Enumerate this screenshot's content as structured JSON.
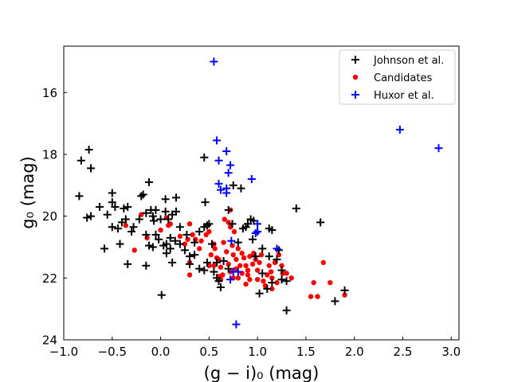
{
  "chart_data": {
    "type": "scatter",
    "xlabel": "(g − i)₀ (mag)",
    "ylabel": "g₀ (mag)",
    "xlim": [
      -1.0,
      3.08
    ],
    "ylim": [
      24.0,
      14.5
    ],
    "y_inverted": true,
    "grid": false,
    "x_ticks": [
      -1.0,
      -0.5,
      0.0,
      0.5,
      1.0,
      1.5,
      2.0,
      2.5,
      3.0
    ],
    "x_tick_labels": [
      "−1.0",
      "−0.5",
      "0.0",
      "0.5",
      "1.0",
      "1.5",
      "2.0",
      "2.5",
      "3.0"
    ],
    "y_ticks": [
      16,
      18,
      20,
      22,
      24
    ],
    "y_tick_labels": [
      "16",
      "18",
      "20",
      "22",
      "24"
    ],
    "legend_position": "top-right",
    "series": [
      {
        "name": "Johnson et al.",
        "marker": "plus",
        "color": "#000000",
        "points": [
          [
            -0.74,
            17.85
          ],
          [
            -0.72,
            18.45
          ],
          [
            -0.82,
            18.2
          ],
          [
            -0.84,
            19.35
          ],
          [
            -0.76,
            20.05
          ],
          [
            -0.72,
            20.0
          ],
          [
            -0.63,
            19.7
          ],
          [
            -0.55,
            19.95
          ],
          [
            -0.5,
            19.25
          ],
          [
            -0.5,
            19.55
          ],
          [
            -0.47,
            19.7
          ],
          [
            -0.5,
            20.35
          ],
          [
            -0.44,
            20.4
          ],
          [
            -0.4,
            20.2
          ],
          [
            -0.38,
            19.75
          ],
          [
            -0.34,
            19.7
          ],
          [
            -0.36,
            20.1
          ],
          [
            -0.3,
            20.5
          ],
          [
            -0.28,
            20.35
          ],
          [
            -0.2,
            19.35
          ],
          [
            -0.18,
            19.3
          ],
          [
            -0.15,
            19.9
          ],
          [
            -0.22,
            20.1
          ],
          [
            -0.12,
            18.9
          ],
          [
            -0.1,
            19.8
          ],
          [
            -0.05,
            19.8
          ],
          [
            -0.08,
            20.0
          ],
          [
            -0.07,
            20.15
          ],
          [
            0.0,
            20.1
          ],
          [
            0.05,
            19.45
          ],
          [
            0.05,
            19.85
          ],
          [
            0.08,
            20.1
          ],
          [
            0.12,
            19.95
          ],
          [
            0.16,
            19.4
          ],
          [
            0.16,
            19.85
          ],
          [
            0.2,
            20.35
          ],
          [
            -0.15,
            20.6
          ],
          [
            -0.05,
            20.6
          ],
          [
            -0.02,
            20.75
          ],
          [
            0.03,
            20.95
          ],
          [
            0.06,
            20.9
          ],
          [
            0.1,
            20.7
          ],
          [
            0.1,
            21.05
          ],
          [
            0.15,
            20.8
          ],
          [
            0.2,
            20.9
          ],
          [
            0.25,
            21.1
          ],
          [
            0.27,
            20.6
          ],
          [
            0.3,
            21.3
          ],
          [
            0.3,
            21.55
          ],
          [
            -0.42,
            20.9
          ],
          [
            -0.58,
            21.05
          ],
          [
            -0.12,
            20.95
          ],
          [
            -0.08,
            21.0
          ],
          [
            0.06,
            21.2
          ],
          [
            0.12,
            21.5
          ],
          [
            -0.34,
            21.55
          ],
          [
            -0.15,
            21.6
          ],
          [
            0.4,
            20.5
          ],
          [
            0.45,
            20.35
          ],
          [
            0.35,
            20.85
          ],
          [
            0.35,
            21.25
          ],
          [
            0.48,
            20.3
          ],
          [
            0.5,
            20.25
          ],
          [
            0.46,
            19.55
          ],
          [
            0.45,
            18.1
          ],
          [
            0.48,
            21.5
          ],
          [
            0.4,
            21.7
          ],
          [
            0.45,
            21.75
          ],
          [
            0.53,
            20.9
          ],
          [
            0.58,
            21.5
          ],
          [
            0.55,
            21.8
          ],
          [
            0.58,
            22.0
          ],
          [
            0.6,
            22.1
          ],
          [
            0.65,
            21.45
          ],
          [
            0.7,
            21.7
          ],
          [
            0.62,
            22.3
          ],
          [
            0.7,
            19.8
          ],
          [
            0.75,
            19.0
          ],
          [
            0.83,
            19.1
          ],
          [
            0.74,
            20.25
          ],
          [
            0.8,
            20.85
          ],
          [
            0.85,
            20.4
          ],
          [
            0.88,
            20.35
          ],
          [
            0.9,
            20.25
          ],
          [
            0.93,
            20.1
          ],
          [
            0.96,
            20.15
          ],
          [
            0.95,
            20.75
          ],
          [
            1.0,
            20.5
          ],
          [
            0.98,
            21.3
          ],
          [
            1.05,
            21.05
          ],
          [
            1.12,
            20.4
          ],
          [
            1.15,
            20.45
          ],
          [
            1.12,
            21.3
          ],
          [
            1.05,
            21.85
          ],
          [
            1.02,
            22.5
          ],
          [
            1.1,
            22.35
          ],
          [
            1.15,
            22.15
          ],
          [
            1.2,
            21.4
          ],
          [
            1.22,
            21.1
          ],
          [
            1.25,
            21.75
          ],
          [
            1.25,
            22.05
          ],
          [
            1.3,
            22.1
          ],
          [
            1.4,
            19.75
          ],
          [
            1.65,
            20.2
          ],
          [
            1.3,
            23.05
          ],
          [
            1.8,
            22.75
          ],
          [
            1.9,
            22.4
          ],
          [
            0.01,
            22.55
          ]
        ]
      },
      {
        "name": "Candidates",
        "marker": "circle",
        "color": "#ff0000",
        "points": [
          [
            -0.36,
            20.3
          ],
          [
            -0.27,
            21.1
          ],
          [
            -0.2,
            19.95
          ],
          [
            -0.14,
            20.7
          ],
          [
            0.0,
            20.45
          ],
          [
            0.06,
            20.05
          ],
          [
            0.08,
            20.3
          ],
          [
            0.1,
            20.25
          ],
          [
            0.2,
            20.65
          ],
          [
            0.25,
            20.9
          ],
          [
            0.28,
            20.75
          ],
          [
            0.3,
            20.25
          ],
          [
            0.33,
            20.6
          ],
          [
            0.36,
            20.75
          ],
          [
            0.3,
            21.5
          ],
          [
            0.3,
            21.9
          ],
          [
            0.4,
            21.05
          ],
          [
            0.42,
            20.8
          ],
          [
            0.47,
            20.6
          ],
          [
            0.5,
            20.5
          ],
          [
            0.52,
            21.25
          ],
          [
            0.55,
            20.9
          ],
          [
            0.56,
            21.05
          ],
          [
            0.58,
            21.35
          ],
          [
            0.55,
            21.6
          ],
          [
            0.6,
            21.4
          ],
          [
            0.62,
            21.65
          ],
          [
            0.64,
            21.9
          ],
          [
            0.6,
            21.95
          ],
          [
            0.62,
            22.05
          ],
          [
            0.66,
            20.1
          ],
          [
            0.7,
            20.2
          ],
          [
            0.72,
            19.8
          ],
          [
            0.72,
            20.35
          ],
          [
            0.74,
            20.95
          ],
          [
            0.76,
            20.5
          ],
          [
            0.75,
            21.25
          ],
          [
            0.78,
            21.4
          ],
          [
            0.8,
            21.05
          ],
          [
            0.78,
            21.7
          ],
          [
            0.72,
            21.8
          ],
          [
            0.75,
            22.0
          ],
          [
            0.8,
            22.0
          ],
          [
            0.82,
            21.6
          ],
          [
            0.84,
            21.2
          ],
          [
            0.86,
            21.35
          ],
          [
            0.88,
            21.6
          ],
          [
            0.9,
            21.75
          ],
          [
            0.92,
            21.3
          ],
          [
            0.9,
            21.9
          ],
          [
            0.88,
            22.2
          ],
          [
            0.95,
            21.55
          ],
          [
            0.96,
            21.2
          ],
          [
            0.98,
            21.4
          ],
          [
            1.0,
            21.75
          ],
          [
            1.0,
            22.05
          ],
          [
            1.02,
            21.5
          ],
          [
            1.04,
            21.25
          ],
          [
            1.06,
            22.1
          ],
          [
            1.08,
            22.25
          ],
          [
            1.1,
            21.9
          ],
          [
            1.12,
            21.6
          ],
          [
            1.14,
            21.8
          ],
          [
            1.15,
            22.0
          ],
          [
            1.18,
            21.5
          ],
          [
            1.22,
            21.25
          ],
          [
            1.25,
            21.6
          ],
          [
            1.26,
            21.85
          ],
          [
            1.3,
            21.85
          ],
          [
            1.35,
            22.0
          ],
          [
            1.2,
            22.15
          ],
          [
            1.15,
            22.35
          ],
          [
            1.55,
            22.6
          ],
          [
            1.58,
            22.15
          ],
          [
            1.62,
            22.6
          ],
          [
            1.68,
            21.5
          ],
          [
            1.75,
            22.15
          ],
          [
            1.9,
            22.55
          ],
          [
            0.68,
            21.15
          ],
          [
            0.65,
            20.85
          ],
          [
            0.7,
            21.55
          ],
          [
            0.84,
            21.85
          ],
          [
            0.92,
            22.05
          ],
          [
            0.5,
            21.6
          ]
        ]
      },
      {
        "name": "Huxor et al.",
        "marker": "plus",
        "color": "#0000ff",
        "points": [
          [
            0.55,
            15.0
          ],
          [
            0.58,
            17.55
          ],
          [
            0.68,
            17.9
          ],
          [
            0.6,
            18.2
          ],
          [
            0.72,
            18.35
          ],
          [
            0.7,
            18.6
          ],
          [
            0.6,
            18.95
          ],
          [
            0.62,
            19.15
          ],
          [
            0.68,
            19.1
          ],
          [
            0.68,
            19.25
          ],
          [
            0.94,
            18.8
          ],
          [
            1.0,
            20.25
          ],
          [
            0.98,
            20.55
          ],
          [
            1.0,
            20.5
          ],
          [
            1.2,
            21.05
          ],
          [
            0.73,
            20.8
          ],
          [
            0.72,
            22.05
          ],
          [
            0.75,
            21.8
          ],
          [
            0.8,
            21.8
          ],
          [
            0.78,
            23.5
          ],
          [
            2.47,
            17.2
          ],
          [
            2.87,
            17.8
          ]
        ]
      }
    ]
  }
}
